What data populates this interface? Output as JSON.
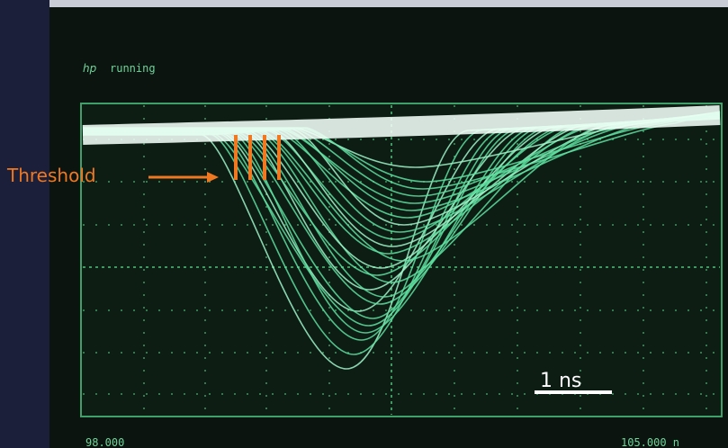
{
  "screen": {
    "brand": "hp",
    "status": "running",
    "footer_left": "98.000",
    "footer_right": "105.000 n"
  },
  "annotations": {
    "threshold": "Threshold",
    "scale": "1 ns"
  }
}
